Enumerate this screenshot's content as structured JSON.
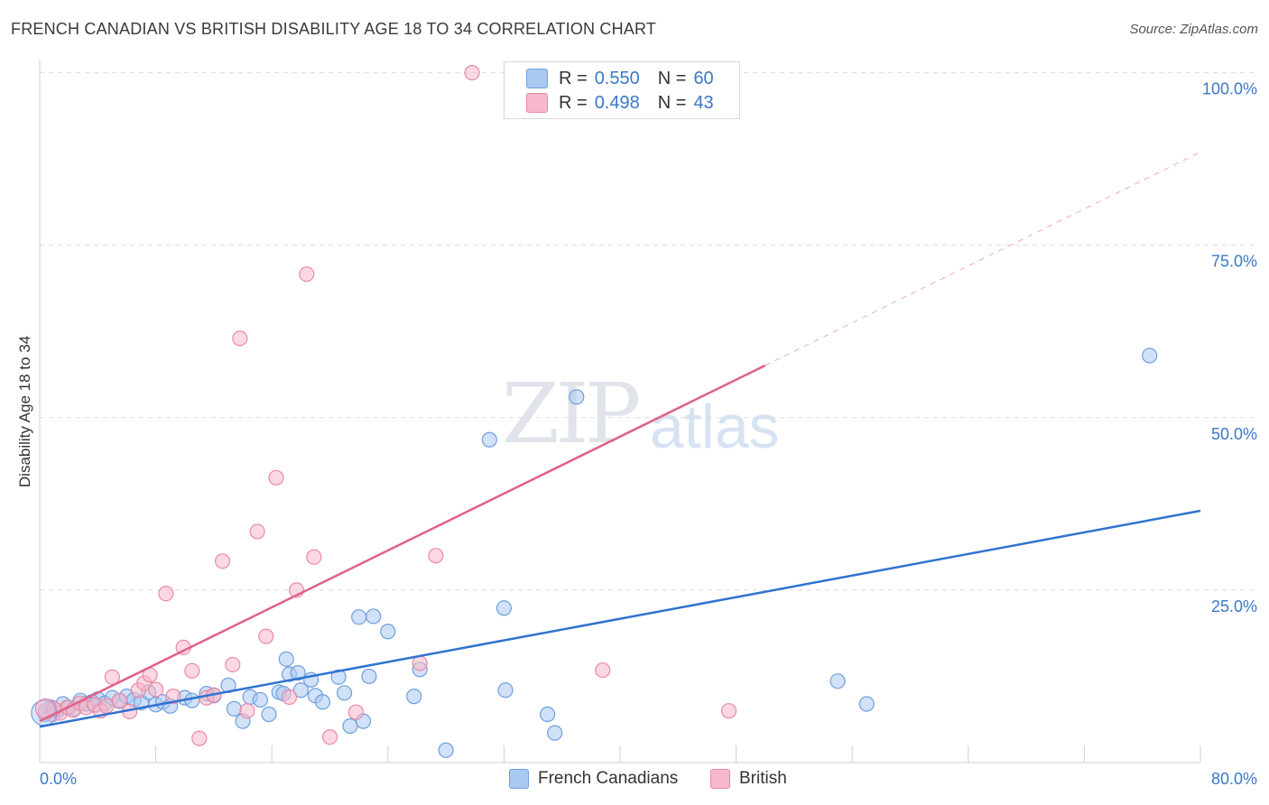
{
  "header": {
    "title": "FRENCH CANADIAN VS BRITISH DISABILITY AGE 18 TO 34 CORRELATION CHART",
    "source": "Source: ZipAtlas.com"
  },
  "watermark": {
    "zip": "ZIP",
    "atlas": "atlas"
  },
  "legend": {
    "r_label": "R =",
    "n_label": "N =",
    "french": {
      "r": "0.550",
      "n": "60",
      "name": "French Canadians"
    },
    "british": {
      "r": "0.498",
      "n": "43",
      "name": "British"
    }
  },
  "colors": {
    "french_fill": "#a9c8f2",
    "french_stroke": "#6f9fdc",
    "french_line": "#2f73d0",
    "british_fill": "#f7b8cb",
    "british_stroke": "#e98aa6",
    "british_line": "#e0608a",
    "grid": "#dcdcdc",
    "tick_label": "#3a78c9"
  },
  "chart_data": {
    "type": "scatter",
    "title": "FRENCH CANADIAN VS BRITISH DISABILITY AGE 18 TO 34 CORRELATION CHART",
    "xlabel": "",
    "ylabel": "Disability Age 18 to 34",
    "xlim": [
      0,
      80
    ],
    "ylim": [
      0,
      100
    ],
    "x_tick_labels": [
      "0.0%",
      "80.0%"
    ],
    "y_ticks": [
      25,
      50,
      75,
      100
    ],
    "y_tick_labels": [
      "25.0%",
      "50.0%",
      "75.0%",
      "100.0%"
    ],
    "grid": true,
    "legend_position": "top-center",
    "series": [
      {
        "name": "French Canadians",
        "r": 0.55,
        "n": 60,
        "trend": {
          "x": [
            0,
            80
          ],
          "y": [
            5.2,
            36.5
          ],
          "dashed_from": null
        },
        "points": [
          [
            0.4,
            7.0
          ],
          [
            0.8,
            8.0
          ],
          [
            1.2,
            7.5
          ],
          [
            1.6,
            8.5
          ],
          [
            2.0,
            8.0
          ],
          [
            2.4,
            7.8
          ],
          [
            2.8,
            9.0
          ],
          [
            3.2,
            8.5
          ],
          [
            3.6,
            8.8
          ],
          [
            4.0,
            9.2
          ],
          [
            4.5,
            8.6
          ],
          [
            5.0,
            9.4
          ],
          [
            5.5,
            8.9
          ],
          [
            6.0,
            9.6
          ],
          [
            6.5,
            9.1
          ],
          [
            7.0,
            8.7
          ],
          [
            7.5,
            10.2
          ],
          [
            8.0,
            8.4
          ],
          [
            8.5,
            8.8
          ],
          [
            9.0,
            8.2
          ],
          [
            10.0,
            9.4
          ],
          [
            10.5,
            9.0
          ],
          [
            11.5,
            10.0
          ],
          [
            12.0,
            9.7
          ],
          [
            13.0,
            11.2
          ],
          [
            13.4,
            7.8
          ],
          [
            14.0,
            6.0
          ],
          [
            14.5,
            9.5
          ],
          [
            15.2,
            9.1
          ],
          [
            15.8,
            7.0
          ],
          [
            16.5,
            10.2
          ],
          [
            16.8,
            10.0
          ],
          [
            17.0,
            15.0
          ],
          [
            17.2,
            12.8
          ],
          [
            17.8,
            13.0
          ],
          [
            18.0,
            10.5
          ],
          [
            18.7,
            12.0
          ],
          [
            19.0,
            9.7
          ],
          [
            19.5,
            8.8
          ],
          [
            20.6,
            12.4
          ],
          [
            21.0,
            10.1
          ],
          [
            21.4,
            5.3
          ],
          [
            22.0,
            21.1
          ],
          [
            22.3,
            6.0
          ],
          [
            22.7,
            12.5
          ],
          [
            23.0,
            21.2
          ],
          [
            24.0,
            19.0
          ],
          [
            25.8,
            9.6
          ],
          [
            26.2,
            13.5
          ],
          [
            28.0,
            1.8
          ],
          [
            31.0,
            46.8
          ],
          [
            32.0,
            22.4
          ],
          [
            32.1,
            10.5
          ],
          [
            35.0,
            7.0
          ],
          [
            35.5,
            4.3
          ],
          [
            37.0,
            53.0
          ],
          [
            55.0,
            11.8
          ],
          [
            57.0,
            8.5
          ],
          [
            76.5,
            59.0
          ],
          [
            3.8,
            8.3
          ]
        ]
      },
      {
        "name": "British",
        "r": 0.498,
        "n": 43,
        "trend": {
          "x": [
            0,
            80
          ],
          "y": [
            6.0,
            88.5
          ],
          "dashed_from": 50
        },
        "points": [
          [
            0.4,
            7.5
          ],
          [
            0.9,
            7.0
          ],
          [
            1.4,
            7.2
          ],
          [
            1.9,
            8.0
          ],
          [
            2.3,
            7.6
          ],
          [
            2.8,
            8.6
          ],
          [
            3.2,
            8.0
          ],
          [
            3.8,
            8.4
          ],
          [
            4.2,
            7.5
          ],
          [
            4.6,
            8.2
          ],
          [
            5.0,
            12.4
          ],
          [
            5.5,
            9.0
          ],
          [
            6.2,
            7.4
          ],
          [
            6.8,
            10.5
          ],
          [
            7.2,
            11.5
          ],
          [
            7.6,
            12.7
          ],
          [
            8.0,
            10.6
          ],
          [
            8.7,
            24.5
          ],
          [
            9.2,
            9.6
          ],
          [
            9.9,
            16.7
          ],
          [
            10.5,
            13.3
          ],
          [
            11.0,
            3.5
          ],
          [
            11.5,
            9.4
          ],
          [
            12.0,
            9.8
          ],
          [
            12.6,
            29.2
          ],
          [
            13.3,
            14.2
          ],
          [
            13.8,
            61.5
          ],
          [
            14.3,
            7.5
          ],
          [
            15.0,
            33.5
          ],
          [
            15.6,
            18.3
          ],
          [
            16.3,
            41.3
          ],
          [
            17.2,
            9.5
          ],
          [
            17.7,
            25.0
          ],
          [
            18.4,
            70.8
          ],
          [
            18.9,
            29.8
          ],
          [
            20.0,
            3.7
          ],
          [
            21.8,
            7.3
          ],
          [
            26.2,
            14.4
          ],
          [
            27.3,
            30.0
          ],
          [
            29.8,
            100
          ],
          [
            38.8,
            13.4
          ],
          [
            47.5,
            7.5
          ],
          [
            1.0,
            7.8
          ]
        ]
      }
    ]
  }
}
